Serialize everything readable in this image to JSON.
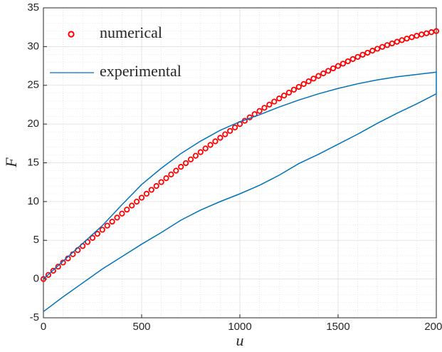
{
  "chart_data": {
    "type": "line",
    "xlabel": "u",
    "ylabel": "F",
    "xlim": [
      0,
      2000
    ],
    "xticks": [
      0,
      500,
      1000,
      1500,
      2000
    ],
    "ylim": [
      -5,
      35
    ],
    "yticks": [
      -5,
      0,
      5,
      10,
      15,
      20,
      25,
      30,
      35
    ],
    "grid": true,
    "minor_grid": true,
    "legend": "upper left",
    "series": [
      {
        "name": "numerical",
        "color": "#ff0000",
        "marker": "circle",
        "x": [
          0,
          25,
          50,
          75,
          100,
          125,
          150,
          175,
          200,
          225,
          250,
          275,
          300,
          325,
          350,
          375,
          400,
          425,
          450,
          475,
          500,
          525,
          550,
          575,
          600,
          625,
          650,
          675,
          700,
          725,
          750,
          775,
          800,
          825,
          850,
          875,
          900,
          925,
          950,
          975,
          1000,
          1025,
          1050,
          1075,
          1100,
          1125,
          1150,
          1175,
          1200,
          1225,
          1250,
          1275,
          1300,
          1325,
          1350,
          1375,
          1400,
          1425,
          1450,
          1475,
          1500,
          1525,
          1550,
          1575,
          1600,
          1625,
          1650,
          1675,
          1700,
          1725,
          1750,
          1775,
          1800,
          1825,
          1850,
          1875,
          1900,
          1925,
          1950,
          1975,
          2000
        ],
        "values": [
          0,
          0.53,
          1.07,
          1.6,
          2.13,
          2.66,
          3.2,
          3.73,
          4.26,
          4.78,
          5.31,
          5.84,
          6.36,
          6.89,
          7.41,
          7.93,
          8.45,
          8.96,
          9.48,
          9.99,
          10.5,
          11.01,
          11.51,
          12.01,
          12.51,
          13.01,
          13.5,
          13.99,
          14.48,
          14.96,
          15.44,
          15.91,
          16.38,
          16.85,
          17.31,
          17.77,
          18.23,
          18.68,
          19.12,
          19.56,
          20.0,
          20.43,
          20.86,
          21.28,
          21.69,
          22.1,
          22.51,
          22.9,
          23.3,
          23.68,
          24.06,
          24.44,
          24.8,
          25.17,
          25.52,
          25.87,
          26.21,
          26.54,
          26.87,
          27.19,
          27.5,
          27.8,
          28.1,
          28.39,
          28.67,
          28.95,
          29.21,
          29.47,
          29.72,
          29.96,
          30.19,
          30.41,
          30.62,
          30.83,
          31.03,
          31.21,
          31.39,
          31.56,
          31.71,
          31.86,
          32.0
        ]
      },
      {
        "name": "experimental",
        "color": "#0072bd",
        "marker": "none",
        "x": [
          0,
          100,
          200,
          300,
          400,
          500,
          600,
          700,
          800,
          900,
          1000,
          1100,
          1200,
          1300,
          1400,
          1500,
          1600,
          1700,
          1800,
          1900,
          2000,
          2000,
          1900,
          1800,
          1700,
          1600,
          1500,
          1400,
          1300,
          1200,
          1100,
          1000,
          900,
          800,
          700,
          600,
          500,
          400,
          300,
          200,
          100,
          0
        ],
        "values": [
          0,
          2.3,
          4.6,
          6.9,
          9.6,
          12.2,
          14.3,
          16.2,
          17.8,
          19.2,
          20.3,
          21.2,
          22.2,
          23.1,
          23.9,
          24.6,
          25.2,
          25.7,
          26.1,
          26.4,
          26.7,
          23.9,
          22.6,
          21.4,
          20.1,
          18.7,
          17.4,
          16.1,
          14.9,
          13.4,
          12.1,
          11.0,
          10.0,
          8.9,
          7.6,
          6.0,
          4.5,
          2.9,
          1.3,
          -0.5,
          -2.3,
          -4.2
        ]
      }
    ]
  }
}
